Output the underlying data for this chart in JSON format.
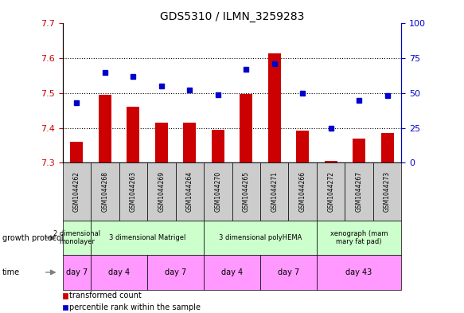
{
  "title": "GDS5310 / ILMN_3259283",
  "samples": [
    "GSM1044262",
    "GSM1044268",
    "GSM1044263",
    "GSM1044269",
    "GSM1044264",
    "GSM1044270",
    "GSM1044265",
    "GSM1044271",
    "GSM1044266",
    "GSM1044272",
    "GSM1044267",
    "GSM1044273"
  ],
  "transformed_count": [
    7.36,
    7.495,
    7.46,
    7.415,
    7.415,
    7.395,
    7.497,
    7.615,
    7.393,
    7.305,
    7.37,
    7.385
  ],
  "percentile_rank": [
    43,
    65,
    62,
    55,
    52,
    49,
    67,
    71,
    50,
    25,
    45,
    48
  ],
  "ylim_left": [
    7.3,
    7.7
  ],
  "ylim_right": [
    0,
    100
  ],
  "yticks_left": [
    7.3,
    7.4,
    7.5,
    7.6,
    7.7
  ],
  "yticks_right": [
    0,
    25,
    50,
    75,
    100
  ],
  "bar_color": "#cc0000",
  "dot_color": "#0000cc",
  "bar_baseline": 7.3,
  "growth_protocol_groups": [
    {
      "label": "2 dimensional\nmonolayer",
      "start": 0,
      "end": 1,
      "color": "#ccffcc"
    },
    {
      "label": "3 dimensional Matrigel",
      "start": 1,
      "end": 5,
      "color": "#ccffcc"
    },
    {
      "label": "3 dimensional polyHEMA",
      "start": 5,
      "end": 9,
      "color": "#ccffcc"
    },
    {
      "label": "xenograph (mam\nmary fat pad)",
      "start": 9,
      "end": 12,
      "color": "#ccffcc"
    }
  ],
  "time_groups": [
    {
      "label": "day 7",
      "start": 0,
      "end": 1,
      "color": "#ff99ff"
    },
    {
      "label": "day 4",
      "start": 1,
      "end": 3,
      "color": "#ff99ff"
    },
    {
      "label": "day 7",
      "start": 3,
      "end": 5,
      "color": "#ff99ff"
    },
    {
      "label": "day 4",
      "start": 5,
      "end": 7,
      "color": "#ff99ff"
    },
    {
      "label": "day 7",
      "start": 7,
      "end": 9,
      "color": "#ff99ff"
    },
    {
      "label": "day 43",
      "start": 9,
      "end": 12,
      "color": "#ff99ff"
    }
  ],
  "legend_items": [
    {
      "label": "transformed count",
      "color": "#cc0000"
    },
    {
      "label": "percentile rank within the sample",
      "color": "#0000cc"
    }
  ],
  "left_axis_color": "#cc0000",
  "right_axis_color": "#0000cc",
  "plot_bg_color": "#f5f5f5",
  "sample_bg_color": "#cccccc"
}
